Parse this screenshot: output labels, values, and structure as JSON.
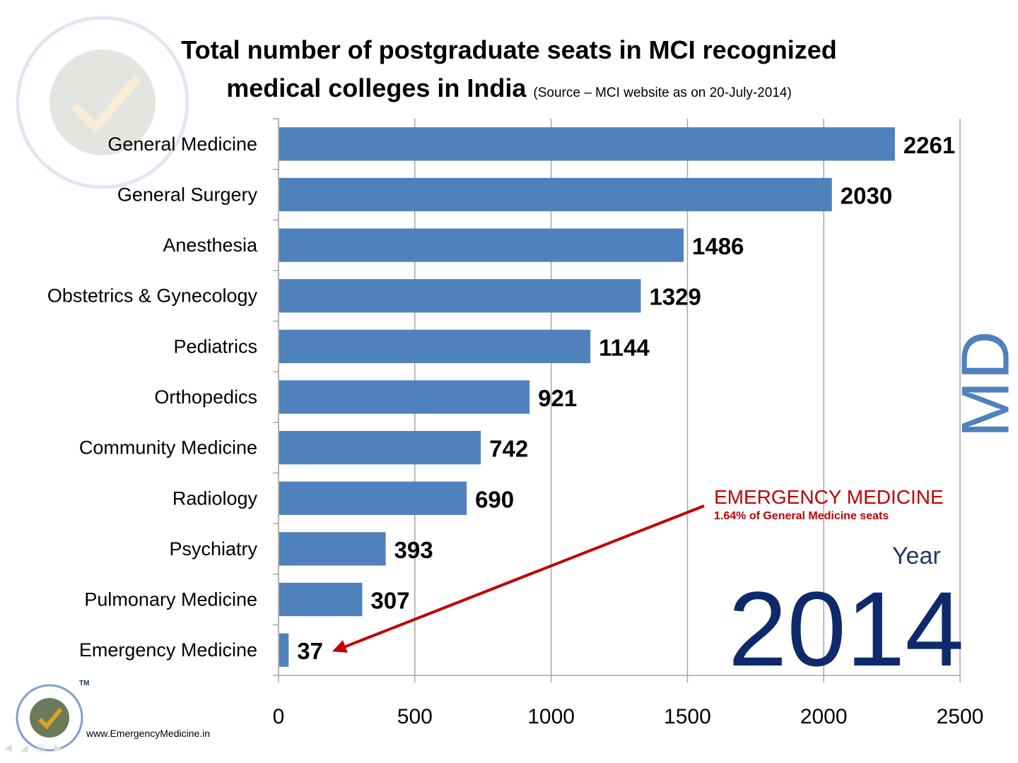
{
  "title": {
    "main": "Total number of postgraduate seats in MCI recognized medical colleges in India",
    "source": "(Source – MCI website as on 20-July-2014)"
  },
  "annotation": {
    "title": "EMERGENCY MEDICINE",
    "subtitle": "1.64% of General Medicine seats"
  },
  "side_label": "MD",
  "year": {
    "label": "Year",
    "value": "2014"
  },
  "footer": {
    "url": "www.EmergencyMedicine.in"
  },
  "logo": {
    "text": "EmergencyMedicine.in",
    "tm": "TM"
  },
  "colors": {
    "bar": "#4f81bd",
    "annotation": "#c00000",
    "year": "#0f2a6b",
    "grid": "#a6a6a6"
  },
  "chart_data": {
    "type": "bar",
    "orientation": "horizontal",
    "categories": [
      "General Medicine",
      "General Surgery",
      "Anesthesia",
      "Obstetrics & Gynecology",
      "Pediatrics",
      "Orthopedics",
      "Community Medicine",
      "Radiology",
      "Psychiatry",
      "Pulmonary Medicine",
      "Emergency Medicine"
    ],
    "values": [
      2261,
      2030,
      1486,
      1329,
      1144,
      921,
      742,
      690,
      393,
      307,
      37
    ],
    "xlim": [
      0,
      2500
    ],
    "xticks": [
      0,
      500,
      1000,
      1500,
      2000,
      2500
    ],
    "grid": true,
    "data_labels": true
  }
}
